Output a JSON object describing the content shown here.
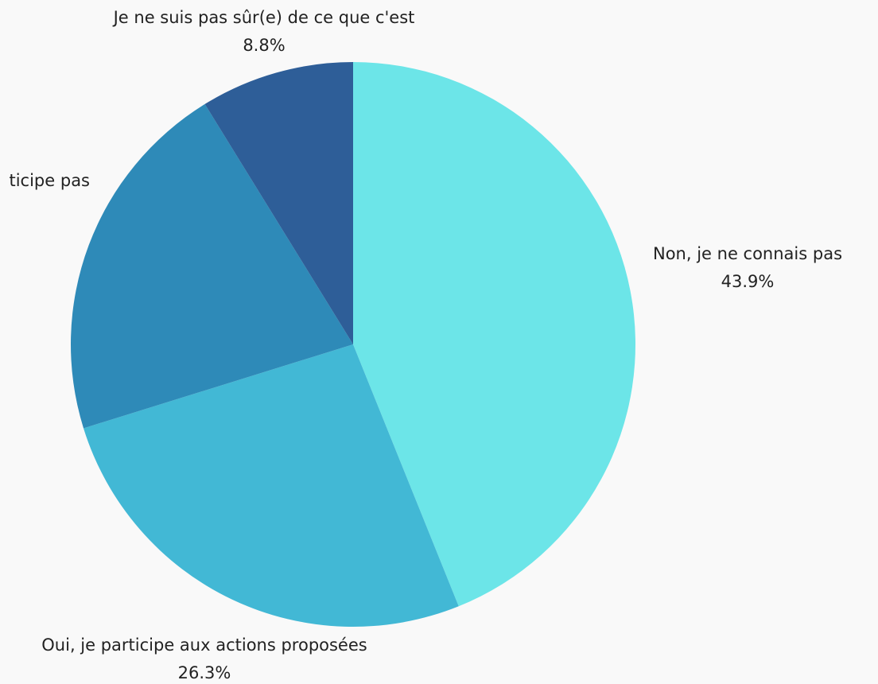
{
  "chart_data": {
    "type": "pie",
    "categories": [
      "Non, je ne connais pas",
      "Oui, je participe aux actions proposées",
      "ticipe pas",
      "Je ne suis pas sûr(e) de ce que c'est"
    ],
    "values": [
      43.9,
      26.3,
      21.0,
      8.8
    ],
    "value_labels": [
      "43.9%",
      "26.3%",
      null,
      "8.8%"
    ],
    "colors": [
      "#6ce5e8",
      "#42b8d5",
      "#2e8ab8",
      "#2e5e98"
    ]
  }
}
